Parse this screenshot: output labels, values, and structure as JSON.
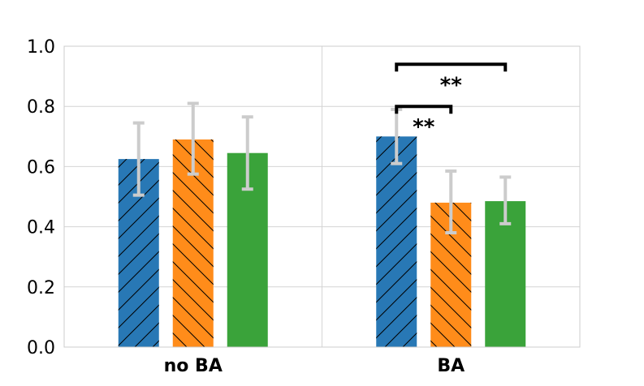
{
  "chart_data": {
    "type": "bar",
    "title": "",
    "xlabel": "",
    "ylabel": "",
    "ylim": [
      0,
      1.0
    ],
    "yticks": [
      "0.0",
      "0.2",
      "0.4",
      "0.6",
      "0.8",
      "1.0"
    ],
    "grid": true,
    "categories": [
      "no BA",
      "BA"
    ],
    "series": [
      {
        "name": "series-1",
        "color": "#2878b5",
        "hatch": "forward-diagonal",
        "values": [
          0.625,
          0.7
        ],
        "err_low": [
          0.505,
          0.61
        ],
        "err_high": [
          0.745,
          0.79
        ]
      },
      {
        "name": "series-2",
        "color": "#ff8c1a",
        "hatch": "back-diagonal",
        "values": [
          0.69,
          0.48
        ],
        "err_low": [
          0.575,
          0.38
        ],
        "err_high": [
          0.81,
          0.585
        ]
      },
      {
        "name": "series-3",
        "color": "#3aa33a",
        "hatch": "none",
        "values": [
          0.645,
          0.485
        ],
        "err_low": [
          0.525,
          0.41
        ],
        "err_high": [
          0.765,
          0.565
        ]
      }
    ],
    "errorbar_color": "#cccccc",
    "annotations": [
      {
        "category": "BA",
        "from_series": 0,
        "to_series": 2,
        "y": 0.94,
        "label": "**"
      },
      {
        "category": "BA",
        "from_series": 0,
        "to_series": 1,
        "y": 0.8,
        "label": "**"
      }
    ]
  }
}
